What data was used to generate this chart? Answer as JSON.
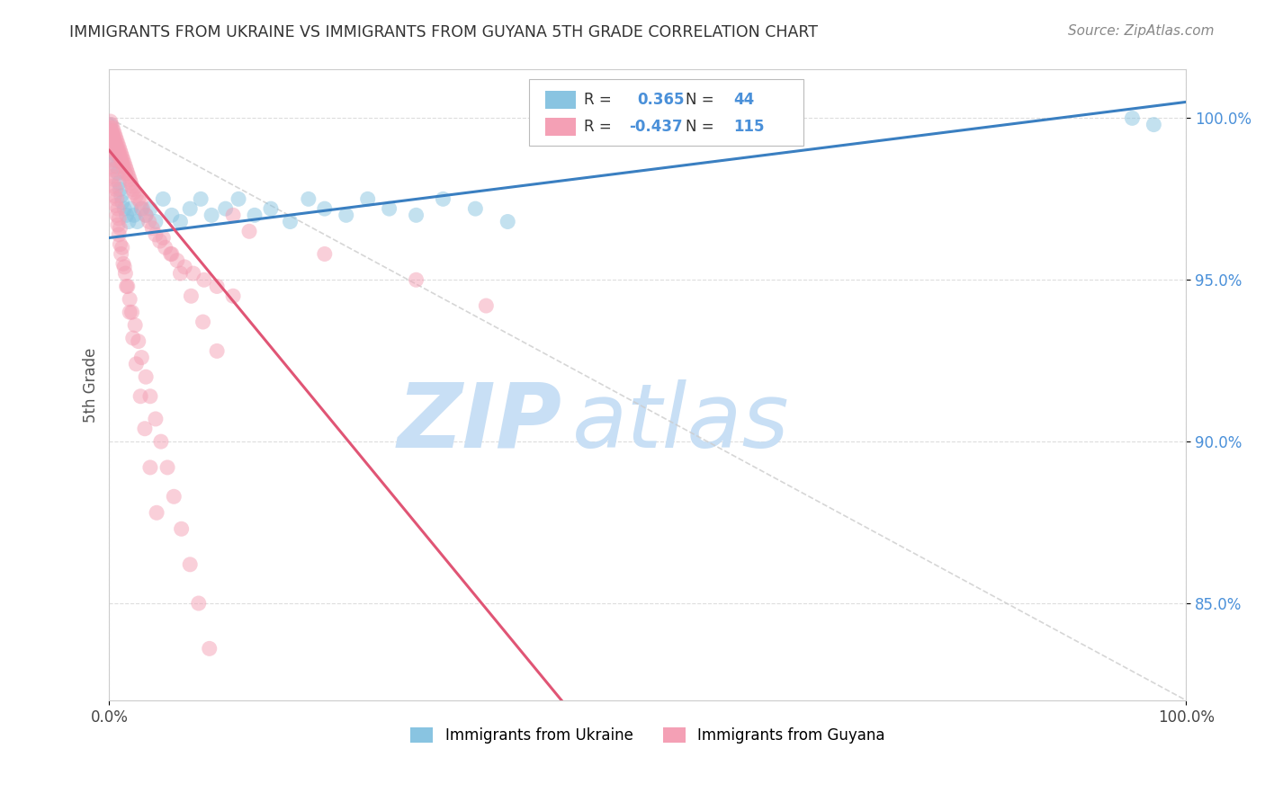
{
  "title": "IMMIGRANTS FROM UKRAINE VS IMMIGRANTS FROM GUYANA 5TH GRADE CORRELATION CHART",
  "source": "Source: ZipAtlas.com",
  "ylabel": "5th Grade",
  "ukraine_R": 0.365,
  "ukraine_N": 44,
  "guyana_R": -0.437,
  "guyana_N": 115,
  "ukraine_color": "#89c4e1",
  "guyana_color": "#f4a0b5",
  "ukraine_line_color": "#3a7fc1",
  "guyana_line_color": "#e05575",
  "diagonal_color": "#cccccc",
  "watermark_zip": "ZIP",
  "watermark_atlas": "atlas",
  "watermark_color": "#c8dff5",
  "background": "#ffffff",
  "xlim": [
    0.0,
    1.0
  ],
  "ylim": [
    0.82,
    1.015
  ],
  "yticks": [
    0.85,
    0.9,
    0.95,
    1.0
  ],
  "ytick_labels": [
    "85.0%",
    "90.0%",
    "95.0%",
    "100.0%"
  ],
  "ukraine_trend_x": [
    0.0,
    1.0
  ],
  "ukraine_trend_y": [
    0.963,
    1.005
  ],
  "guyana_trend_x": [
    0.0,
    0.42
  ],
  "guyana_trend_y": [
    0.99,
    0.82
  ],
  "ukraine_x": [
    0.001,
    0.002,
    0.003,
    0.004,
    0.005,
    0.006,
    0.007,
    0.008,
    0.009,
    0.01,
    0.011,
    0.012,
    0.014,
    0.016,
    0.018,
    0.02,
    0.023,
    0.026,
    0.03,
    0.034,
    0.038,
    0.043,
    0.05,
    0.058,
    0.066,
    0.075,
    0.085,
    0.095,
    0.108,
    0.12,
    0.135,
    0.15,
    0.168,
    0.185,
    0.2,
    0.22,
    0.24,
    0.26,
    0.285,
    0.31,
    0.34,
    0.37,
    0.95,
    0.97
  ],
  "ukraine_y": [
    0.998,
    0.995,
    0.993,
    0.991,
    0.989,
    0.987,
    0.985,
    0.983,
    0.98,
    0.978,
    0.976,
    0.974,
    0.972,
    0.97,
    0.968,
    0.972,
    0.97,
    0.968,
    0.972,
    0.97,
    0.972,
    0.968,
    0.975,
    0.97,
    0.968,
    0.972,
    0.975,
    0.97,
    0.972,
    0.975,
    0.97,
    0.972,
    0.968,
    0.975,
    0.972,
    0.97,
    0.975,
    0.972,
    0.97,
    0.975,
    0.972,
    0.968,
    1.0,
    0.998
  ],
  "guyana_x": [
    0.001,
    0.001,
    0.002,
    0.002,
    0.002,
    0.003,
    0.003,
    0.003,
    0.004,
    0.004,
    0.004,
    0.005,
    0.005,
    0.005,
    0.006,
    0.006,
    0.006,
    0.007,
    0.007,
    0.007,
    0.008,
    0.008,
    0.009,
    0.009,
    0.01,
    0.01,
    0.011,
    0.011,
    0.012,
    0.012,
    0.013,
    0.013,
    0.014,
    0.015,
    0.015,
    0.016,
    0.017,
    0.018,
    0.019,
    0.02,
    0.021,
    0.022,
    0.023,
    0.025,
    0.027,
    0.029,
    0.031,
    0.034,
    0.037,
    0.04,
    0.043,
    0.047,
    0.052,
    0.057,
    0.063,
    0.07,
    0.078,
    0.088,
    0.1,
    0.115,
    0.002,
    0.003,
    0.004,
    0.005,
    0.006,
    0.007,
    0.008,
    0.009,
    0.01,
    0.011,
    0.013,
    0.015,
    0.017,
    0.019,
    0.021,
    0.024,
    0.027,
    0.03,
    0.034,
    0.038,
    0.043,
    0.048,
    0.054,
    0.06,
    0.067,
    0.075,
    0.083,
    0.093,
    0.001,
    0.002,
    0.003,
    0.004,
    0.005,
    0.006,
    0.007,
    0.008,
    0.009,
    0.01,
    0.012,
    0.014,
    0.016,
    0.019,
    0.022,
    0.025,
    0.029,
    0.033,
    0.038,
    0.044,
    0.05,
    0.058,
    0.066,
    0.076,
    0.087,
    0.1,
    0.115,
    0.13,
    0.2,
    0.285,
    0.35
  ],
  "guyana_y": [
    0.999,
    0.997,
    0.998,
    0.996,
    0.994,
    0.997,
    0.995,
    0.993,
    0.996,
    0.994,
    0.992,
    0.995,
    0.993,
    0.991,
    0.994,
    0.992,
    0.99,
    0.993,
    0.991,
    0.989,
    0.992,
    0.99,
    0.991,
    0.989,
    0.99,
    0.988,
    0.989,
    0.987,
    0.988,
    0.986,
    0.987,
    0.985,
    0.986,
    0.985,
    0.983,
    0.984,
    0.983,
    0.982,
    0.981,
    0.98,
    0.979,
    0.978,
    0.977,
    0.976,
    0.975,
    0.974,
    0.972,
    0.97,
    0.968,
    0.966,
    0.964,
    0.962,
    0.96,
    0.958,
    0.956,
    0.954,
    0.952,
    0.95,
    0.948,
    0.945,
    0.985,
    0.982,
    0.979,
    0.976,
    0.973,
    0.97,
    0.967,
    0.964,
    0.961,
    0.958,
    0.955,
    0.952,
    0.948,
    0.944,
    0.94,
    0.936,
    0.931,
    0.926,
    0.92,
    0.914,
    0.907,
    0.9,
    0.892,
    0.883,
    0.873,
    0.862,
    0.85,
    0.836,
    0.993,
    0.99,
    0.987,
    0.984,
    0.981,
    0.978,
    0.975,
    0.972,
    0.969,
    0.966,
    0.96,
    0.954,
    0.948,
    0.94,
    0.932,
    0.924,
    0.914,
    0.904,
    0.892,
    0.878,
    0.963,
    0.958,
    0.952,
    0.945,
    0.937,
    0.928,
    0.97,
    0.965,
    0.958,
    0.95,
    0.942
  ]
}
